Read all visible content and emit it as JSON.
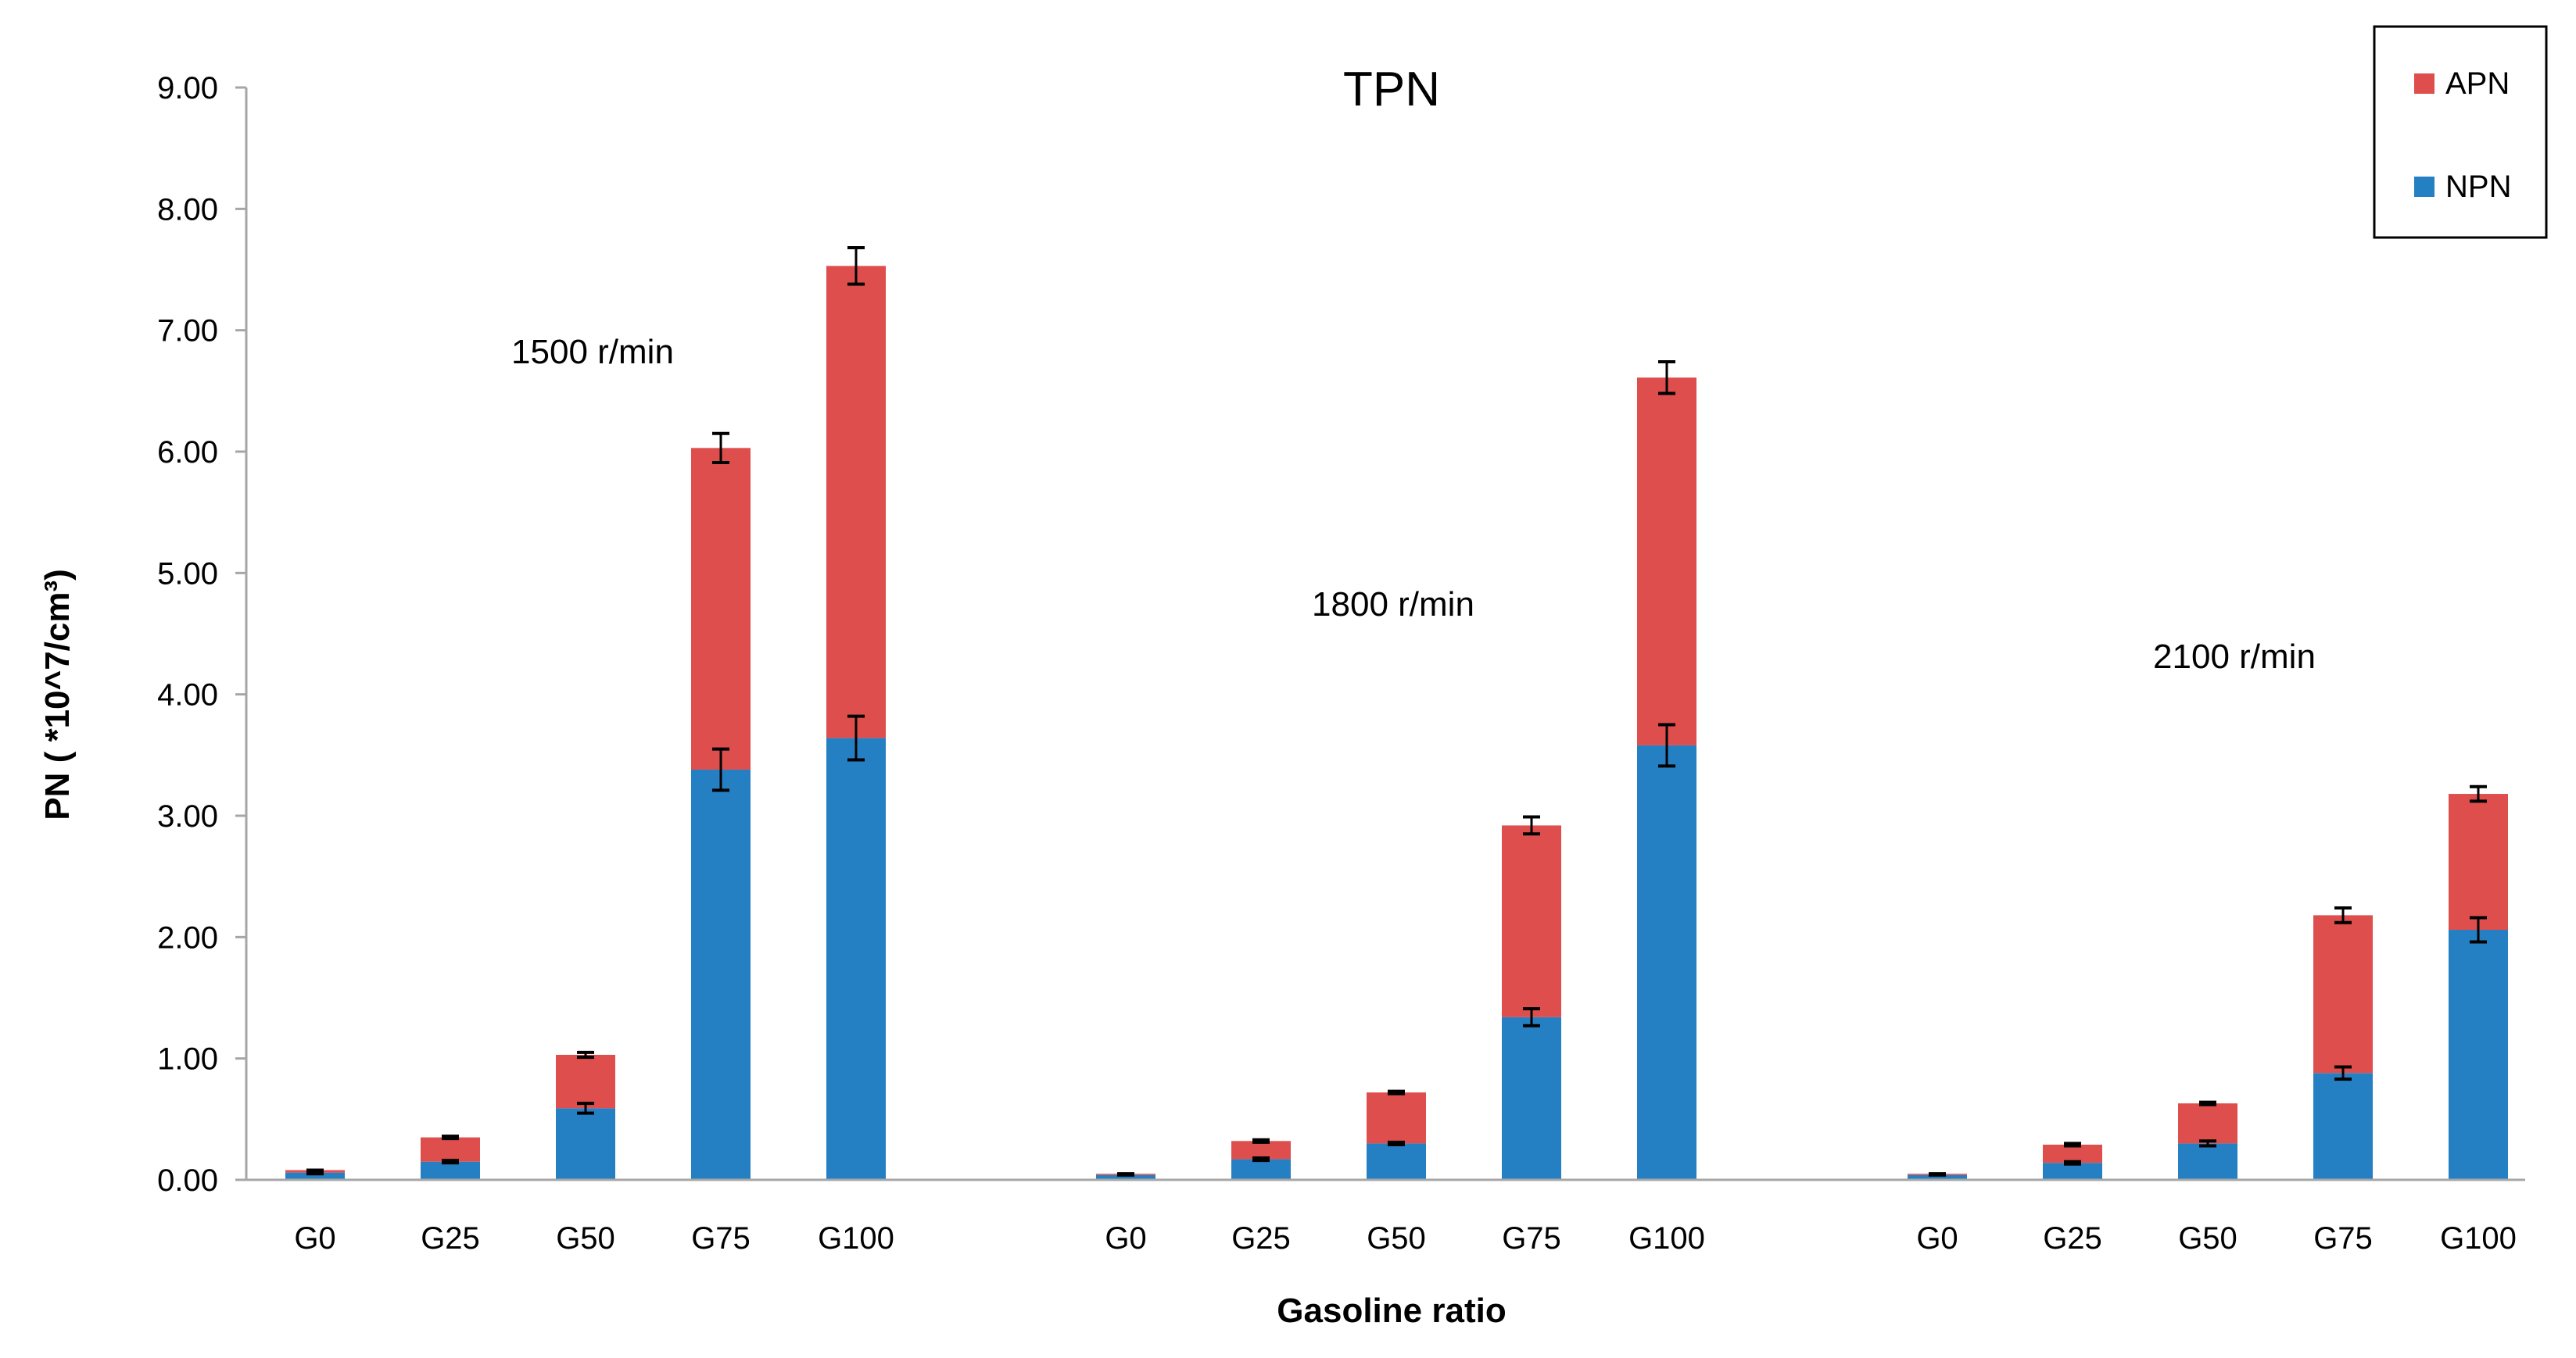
{
  "chart_data": {
    "type": "bar",
    "stacked": true,
    "title": "TPN",
    "xlabel": "Gasoline ratio",
    "ylabel": "PN ( *10^7/cm³)",
    "ylim": [
      0,
      9
    ],
    "yticks": [
      "0.00",
      "1.00",
      "2.00",
      "3.00",
      "4.00",
      "5.00",
      "6.00",
      "7.00",
      "8.00",
      "9.00"
    ],
    "ytick_values": [
      0,
      1,
      2,
      3,
      4,
      5,
      6,
      7,
      8,
      9
    ],
    "colors": {
      "NPN": "#2580c3",
      "APN": "#de4e4d"
    },
    "legend": [
      "APN",
      "NPN"
    ],
    "groups": [
      {
        "label": "1500 r/min",
        "categories": [
          "G0",
          "G25",
          "G50",
          "G75",
          "G100"
        ],
        "series": [
          {
            "name": "NPN",
            "values": [
              0.06,
              0.15,
              0.59,
              3.38,
              3.64
            ],
            "errors": [
              0.01,
              0.01,
              0.04,
              0.17,
              0.18
            ]
          },
          {
            "name": "APN",
            "values": [
              0.02,
              0.2,
              0.44,
              2.65,
              3.89
            ],
            "errors": [
              0.0,
              0.01,
              0.02,
              0.12,
              0.15
            ]
          }
        ]
      },
      {
        "label": "1800 r/min",
        "categories": [
          "G0",
          "G25",
          "G50",
          "G75",
          "G100"
        ],
        "series": [
          {
            "name": "NPN",
            "values": [
              0.04,
              0.17,
              0.3,
              1.34,
              3.58
            ],
            "errors": [
              0.0,
              0.01,
              0.01,
              0.07,
              0.17
            ]
          },
          {
            "name": "APN",
            "values": [
              0.01,
              0.15,
              0.42,
              1.58,
              3.03
            ],
            "errors": [
              0.0,
              0.01,
              0.01,
              0.07,
              0.13
            ]
          }
        ]
      },
      {
        "label": "2100 r/min",
        "categories": [
          "G0",
          "G25",
          "G50",
          "G75",
          "G100"
        ],
        "series": [
          {
            "name": "NPN",
            "values": [
              0.04,
              0.14,
              0.3,
              0.88,
              2.06
            ],
            "errors": [
              0.0,
              0.01,
              0.02,
              0.05,
              0.1
            ]
          },
          {
            "name": "APN",
            "values": [
              0.01,
              0.15,
              0.33,
              1.3,
              1.12
            ],
            "errors": [
              0.0,
              0.01,
              0.01,
              0.06,
              0.06
            ]
          }
        ]
      }
    ]
  }
}
